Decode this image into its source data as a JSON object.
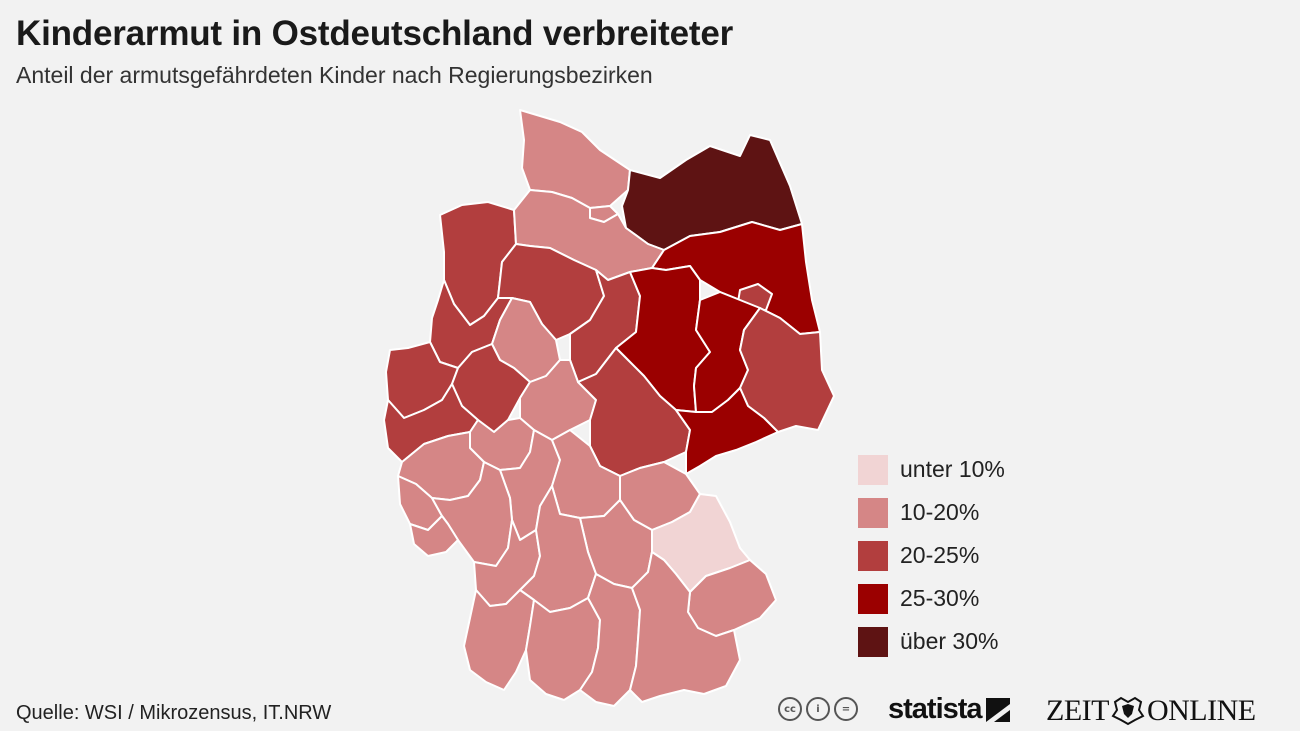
{
  "header": {
    "title": "Kinderarmut in Ostdeutschland verbreiteter",
    "subtitle": "Anteil der armutsgefährdeten Kinder nach Regierungsbezirken"
  },
  "colors": {
    "unter_10": "#f1d4d4",
    "10_20": "#d58686",
    "20_25": "#b23e3e",
    "25_30": "#9b0000",
    "ueber_30": "#5e1313",
    "border": "#ffffff",
    "background": "#f2f2f2"
  },
  "legend": {
    "items": [
      {
        "label": "unter 10%",
        "color": "#f1d4d4"
      },
      {
        "label": "10-20%",
        "color": "#d58686"
      },
      {
        "label": "20-25%",
        "color": "#b23e3e"
      },
      {
        "label": "25-30%",
        "color": "#9b0000"
      },
      {
        "label": "über 30%",
        "color": "#5e1313"
      }
    ]
  },
  "map": {
    "regions": [
      {
        "name": "schleswig-holstein",
        "category": "10-20%"
      },
      {
        "name": "hamburg",
        "category": "10-20%"
      },
      {
        "name": "mecklenburg-vorpommern",
        "category": "über 30%"
      },
      {
        "name": "weser-ems",
        "category": "20-25%"
      },
      {
        "name": "lueneburg",
        "category": "10-20%"
      },
      {
        "name": "hannover",
        "category": "20-25%"
      },
      {
        "name": "braunschweig",
        "category": "20-25%"
      },
      {
        "name": "brandenburg",
        "category": "25-30%"
      },
      {
        "name": "berlin",
        "category": "20-25%"
      },
      {
        "name": "sachsen-anhalt",
        "category": "25-30%"
      },
      {
        "name": "muenster",
        "category": "20-25%"
      },
      {
        "name": "detmold",
        "category": "10-20%"
      },
      {
        "name": "duesseldorf",
        "category": "20-25%"
      },
      {
        "name": "arnsberg",
        "category": "20-25%"
      },
      {
        "name": "koeln",
        "category": "20-25%"
      },
      {
        "name": "kassel",
        "category": "10-20%"
      },
      {
        "name": "thueringen",
        "category": "20-25%"
      },
      {
        "name": "leipzig",
        "category": "25-30%"
      },
      {
        "name": "dresden",
        "category": "20-25%"
      },
      {
        "name": "chemnitz",
        "category": "25-30%"
      },
      {
        "name": "giessen",
        "category": "10-20%"
      },
      {
        "name": "koblenz",
        "category": "10-20%"
      },
      {
        "name": "darmstadt",
        "category": "10-20%"
      },
      {
        "name": "trier",
        "category": "10-20%"
      },
      {
        "name": "rheinhessen-pfalz",
        "category": "10-20%"
      },
      {
        "name": "saarland",
        "category": "10-20%"
      },
      {
        "name": "unterfranken",
        "category": "10-20%"
      },
      {
        "name": "oberfranken",
        "category": "10-20%"
      },
      {
        "name": "oberpfalz",
        "category": "unter 10%"
      },
      {
        "name": "mittelfranken",
        "category": "10-20%"
      },
      {
        "name": "niederbayern",
        "category": "10-20%"
      },
      {
        "name": "karlsruhe",
        "category": "10-20%"
      },
      {
        "name": "stuttgart",
        "category": "10-20%"
      },
      {
        "name": "freiburg",
        "category": "10-20%"
      },
      {
        "name": "tuebingen",
        "category": "10-20%"
      },
      {
        "name": "schwaben",
        "category": "10-20%"
      },
      {
        "name": "oberbayern",
        "category": "10-20%"
      }
    ]
  },
  "footer": {
    "source": "Quelle: WSI / Mikrozensus, IT.NRW",
    "cc_icons": [
      "cc-icon",
      "by-icon",
      "nd-icon"
    ],
    "cc_labels": [
      "cc",
      "i",
      "="
    ],
    "statista": "statista",
    "zeit_left": "ZEIT",
    "zeit_right": "ONLINE"
  }
}
